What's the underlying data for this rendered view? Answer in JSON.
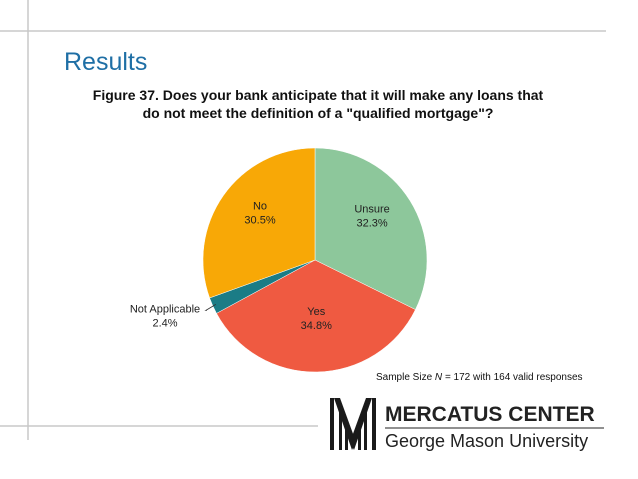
{
  "heading": "Results",
  "chart_data": {
    "type": "pie",
    "title": "Figure 37. Does your bank anticipate that it will make any loans that do not meet the definition of a \"qualified mortgage\"?",
    "categories": [
      "Unsure",
      "Yes",
      "Not Applicable",
      "No"
    ],
    "values": [
      32.3,
      34.8,
      2.4,
      30.5
    ],
    "value_labels": [
      "32.3%",
      "34.8%",
      "2.4%",
      "30.5%"
    ],
    "colors": [
      "#8dc79b",
      "#ef5a41",
      "#1b7c86",
      "#f8a806"
    ]
  },
  "note": {
    "label": "Sample Size",
    "symbol": "N",
    "text": "= 172 with 164 valid responses"
  },
  "logo": {
    "name": "MERCATUS CENTER",
    "university": "George Mason University"
  }
}
